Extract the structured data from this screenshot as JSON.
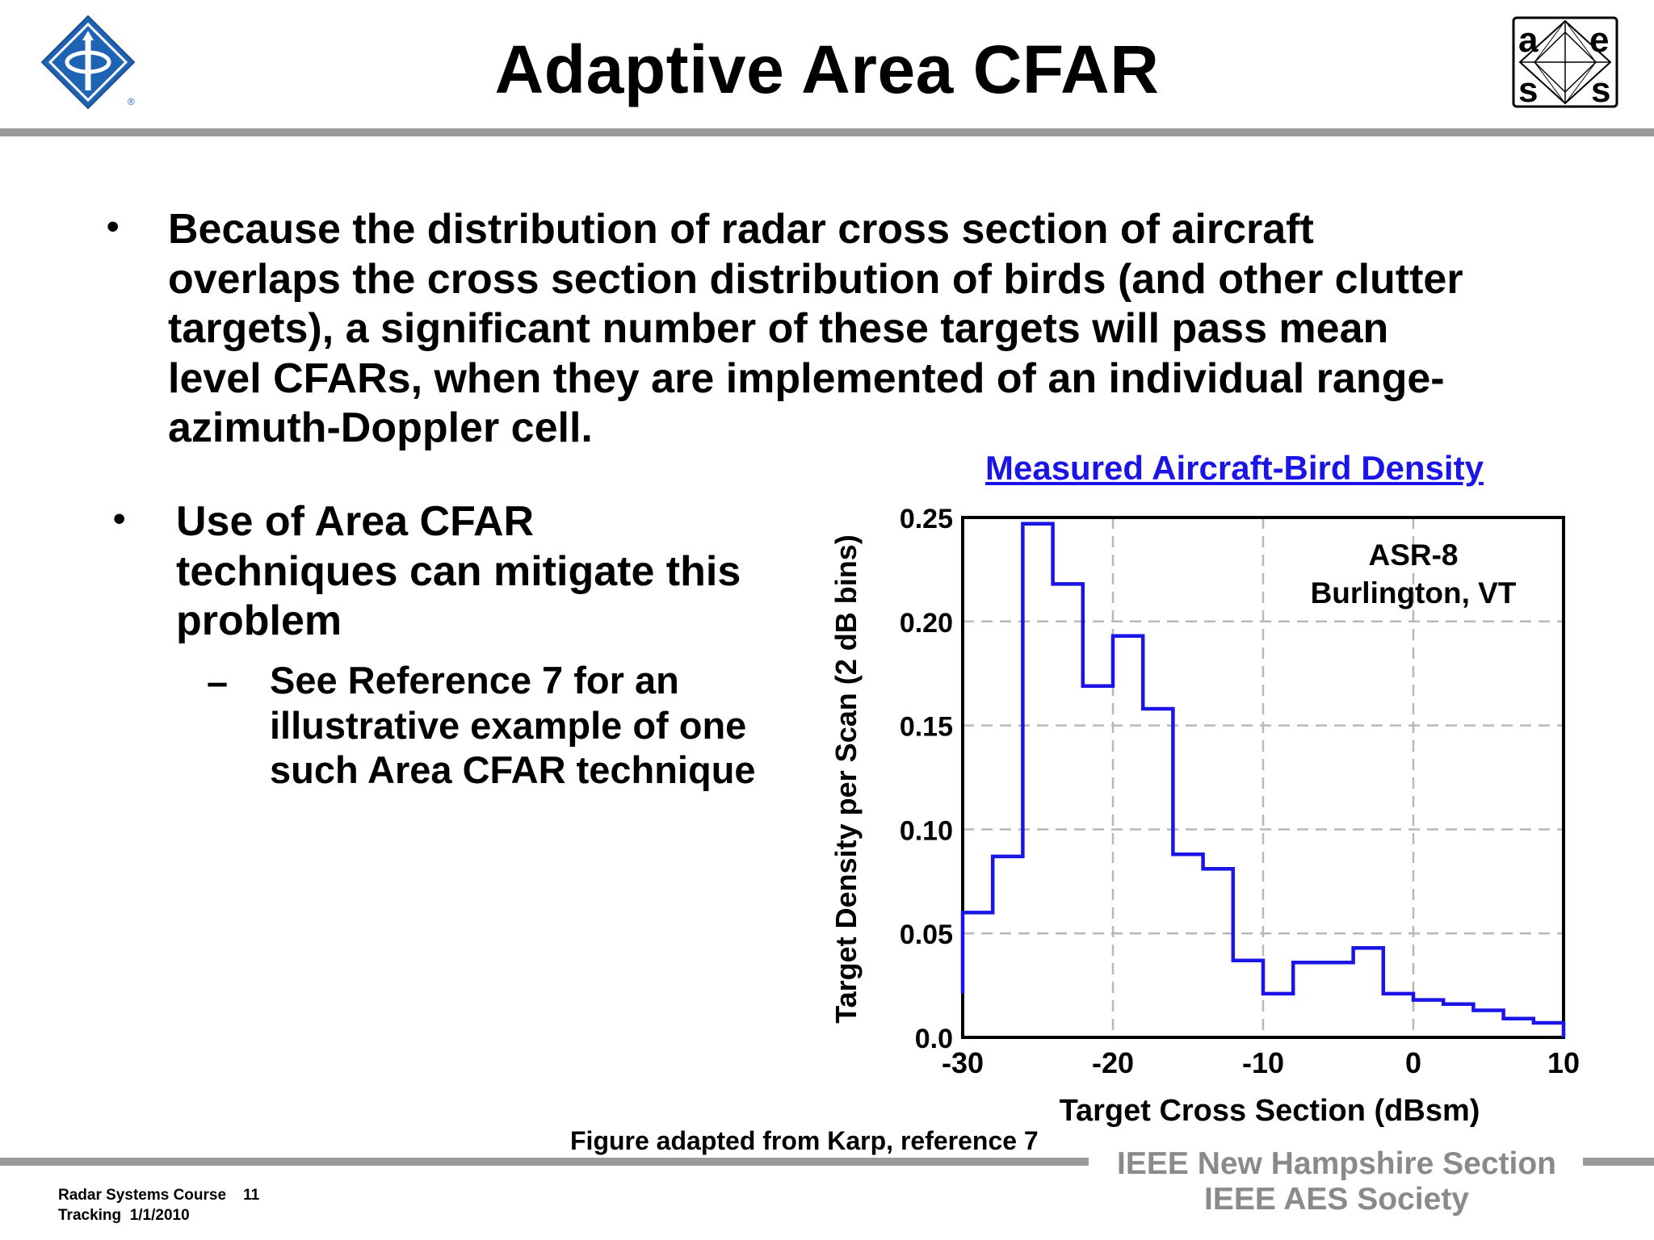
{
  "slide": {
    "title": "Adaptive Area CFAR",
    "bullets": [
      {
        "text": "Because the distribution of radar cross section of aircraft overlaps the cross section distribution of birds (and other clutter targets), a significant number of these targets will pass mean level CFARs, when they are implemented of an individual range-azimuth-Doppler cell."
      },
      {
        "text": "Use of Area CFAR techniques can mitigate this problem",
        "sub": "See Reference 7 for an illustrative example of one such Area CFAR technique"
      }
    ],
    "figure_caption": "Figure adapted from Karp, reference 7",
    "footer_left": [
      "Radar Systems Course    11",
      "Tracking  1/1/2010"
    ],
    "footer_right": [
      "IEEE New Hampshire Section",
      "IEEE AES Society"
    ],
    "logo_left": "ieee-logo-icon",
    "logo_right": "aess-logo-icon",
    "colors": {
      "series": "#1a14e6",
      "rule": "#9a9a9a",
      "footer_text": "#8a8a8a"
    }
  },
  "chart_data": {
    "type": "line",
    "style": "step",
    "title": "Measured Aircraft-Bird Density",
    "xlabel": "Target Cross Section (dBsm)",
    "ylabel": "Target Density per Scan (2 dB bins)",
    "xlim": [
      -30,
      10
    ],
    "ylim": [
      0,
      0.25
    ],
    "xticks": [
      -30,
      -20,
      -10,
      0,
      10
    ],
    "xtick_labels": [
      "-30",
      "-20",
      "-10",
      "0",
      "10"
    ],
    "yticks": [
      0,
      0.05,
      0.1,
      0.15,
      0.2,
      0.25
    ],
    "ytick_labels": [
      "0.0",
      "0.05",
      "0.10",
      "0.15",
      "0.20",
      "0.25"
    ],
    "grid": true,
    "annotation": [
      "ASR-8",
      "Burlington, VT"
    ],
    "bins": {
      "edges": [
        -30,
        -28,
        -26,
        -24,
        -22,
        -20,
        -18,
        -16,
        -14,
        -12,
        -10,
        -8,
        -6,
        -4,
        -2,
        0,
        2,
        4,
        6,
        8,
        10
      ],
      "values": [
        0.06,
        0.087,
        0.247,
        0.218,
        0.169,
        0.193,
        0.158,
        0.088,
        0.081,
        0.037,
        0.021,
        0.036,
        0.036,
        0.043,
        0.021,
        0.018,
        0.016,
        0.013,
        0.009,
        0.007
      ],
      "start_value": 0.021
    }
  }
}
